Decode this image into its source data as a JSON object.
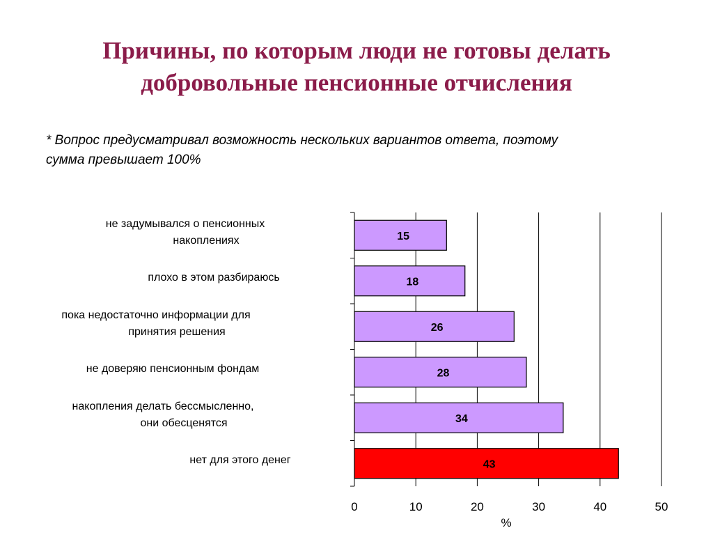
{
  "title_lines": [
    "Причины, по которым люди не готовы делать",
    "добровольные пенсионные отчисления"
  ],
  "note_lines": [
    "* Вопрос предусматривал возможность нескольких вариантов ответа, поэтому",
    "сумма превышает 100%"
  ],
  "colors": {
    "title": "#8b1c4a",
    "bar_default": "#cc99ff",
    "bar_highlight": "#ff0000"
  },
  "chart_data": {
    "type": "bar",
    "orientation": "horizontal",
    "categories": [
      [
        "не задумывался о пенсионных",
        "накоплениях"
      ],
      [
        "плохо в этом разбираюсь"
      ],
      [
        "пока недостаточно информации для",
        "принятия решения"
      ],
      [
        "не доверяю пенсионным фондам"
      ],
      [
        "накопления делать бессмысленно,",
        "они обесценятся"
      ],
      [
        "нет для этого денег"
      ]
    ],
    "values": [
      15,
      18,
      26,
      28,
      34,
      43
    ],
    "value_labels": [
      "15",
      "18",
      "26",
      "28",
      "34",
      "43"
    ],
    "highlight_index": 5,
    "xlim": [
      0,
      50
    ],
    "xticks": [
      "0",
      "10",
      "20",
      "30",
      "40",
      "50"
    ],
    "xlabel": "%",
    "title": "",
    "grid": "vertical"
  }
}
